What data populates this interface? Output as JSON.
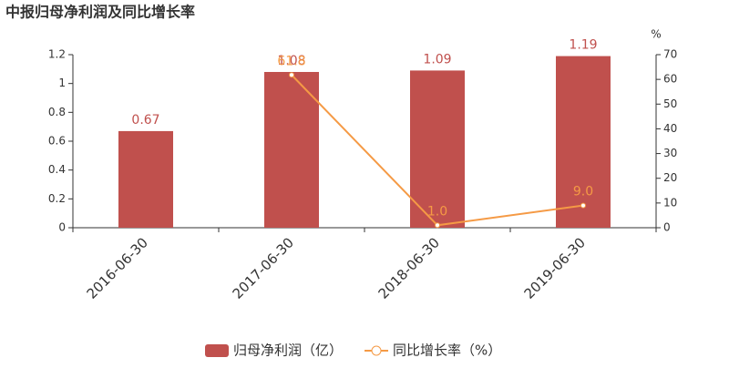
{
  "chart_data": {
    "type": "bar-line",
    "title": "中报归母净利润及同比增长率",
    "y2_label": "%",
    "categories": [
      "2016-06-30",
      "2017-06-30",
      "2018-06-30",
      "2019-06-30"
    ],
    "series": [
      {
        "name": "归母净利润（亿）",
        "type": "bar",
        "color": "#c0504d",
        "values": [
          0.67,
          1.08,
          1.09,
          1.19
        ]
      },
      {
        "name": "同比增长率（%）",
        "type": "line",
        "axis": "y2",
        "color": "#f59a45",
        "values": [
          null,
          61.8,
          1.0,
          9.0
        ],
        "value_labels": [
          null,
          "61.8",
          "1.0",
          "9.0"
        ]
      }
    ],
    "ylim": [
      0,
      1.2
    ],
    "yticks": [
      0,
      0.2,
      0.4,
      0.6,
      0.8,
      1,
      1.2
    ],
    "y2lim": [
      0,
      70
    ],
    "y2ticks": [
      0,
      10,
      20,
      30,
      40,
      50,
      60,
      70
    ],
    "legend": "bottom"
  }
}
